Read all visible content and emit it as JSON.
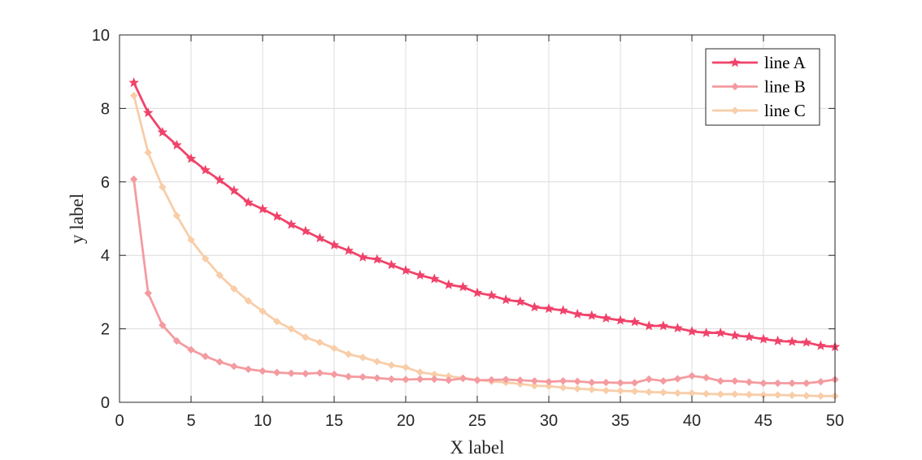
{
  "chart_data": {
    "type": "line",
    "title": "",
    "xlabel": "X label",
    "ylabel": "y label",
    "xlim": [
      0,
      50
    ],
    "ylim": [
      0,
      10
    ],
    "xticks": [
      0,
      5,
      10,
      15,
      20,
      25,
      30,
      35,
      40,
      45,
      50
    ],
    "yticks": [
      0,
      2,
      4,
      6,
      8,
      10
    ],
    "grid": true,
    "legend_position": "top-right",
    "x": [
      1,
      2,
      3,
      4,
      5,
      6,
      7,
      8,
      9,
      10,
      11,
      12,
      13,
      14,
      15,
      16,
      17,
      18,
      19,
      20,
      21,
      22,
      23,
      24,
      25,
      26,
      27,
      28,
      29,
      30,
      31,
      32,
      33,
      34,
      35,
      36,
      37,
      38,
      39,
      40,
      41,
      42,
      43,
      44,
      45,
      46,
      47,
      48,
      49,
      50
    ],
    "series": [
      {
        "name": "line A",
        "color": "#f0436a",
        "marker": "star",
        "values": [
          8.7,
          7.88,
          7.35,
          7.0,
          6.63,
          6.32,
          6.05,
          5.76,
          5.44,
          5.26,
          5.06,
          4.84,
          4.66,
          4.47,
          4.28,
          4.13,
          3.95,
          3.89,
          3.74,
          3.59,
          3.46,
          3.36,
          3.2,
          3.14,
          2.98,
          2.91,
          2.79,
          2.74,
          2.59,
          2.55,
          2.5,
          2.4,
          2.36,
          2.29,
          2.23,
          2.19,
          2.08,
          2.08,
          2.02,
          1.93,
          1.89,
          1.89,
          1.82,
          1.78,
          1.72,
          1.67,
          1.65,
          1.63,
          1.54,
          1.51
        ]
      },
      {
        "name": "line B",
        "color": "#f49ba0",
        "marker": "diamond",
        "values": [
          6.07,
          2.97,
          2.1,
          1.67,
          1.43,
          1.25,
          1.1,
          0.98,
          0.9,
          0.85,
          0.81,
          0.79,
          0.78,
          0.8,
          0.76,
          0.7,
          0.69,
          0.66,
          0.63,
          0.62,
          0.63,
          0.63,
          0.6,
          0.65,
          0.6,
          0.61,
          0.62,
          0.6,
          0.58,
          0.56,
          0.58,
          0.57,
          0.54,
          0.54,
          0.53,
          0.53,
          0.63,
          0.58,
          0.64,
          0.72,
          0.67,
          0.58,
          0.58,
          0.55,
          0.52,
          0.52,
          0.52,
          0.52,
          0.56,
          0.62
        ]
      },
      {
        "name": "line C",
        "color": "#f8cda8",
        "marker": "diamond",
        "values": [
          8.35,
          6.8,
          5.86,
          5.08,
          4.42,
          3.91,
          3.46,
          3.09,
          2.76,
          2.48,
          2.2,
          2.0,
          1.77,
          1.63,
          1.47,
          1.31,
          1.22,
          1.11,
          1.01,
          0.95,
          0.82,
          0.76,
          0.71,
          0.66,
          0.61,
          0.57,
          0.54,
          0.5,
          0.45,
          0.44,
          0.4,
          0.37,
          0.35,
          0.32,
          0.31,
          0.3,
          0.28,
          0.27,
          0.25,
          0.25,
          0.23,
          0.22,
          0.22,
          0.21,
          0.2,
          0.2,
          0.19,
          0.18,
          0.17,
          0.17
        ]
      }
    ]
  }
}
